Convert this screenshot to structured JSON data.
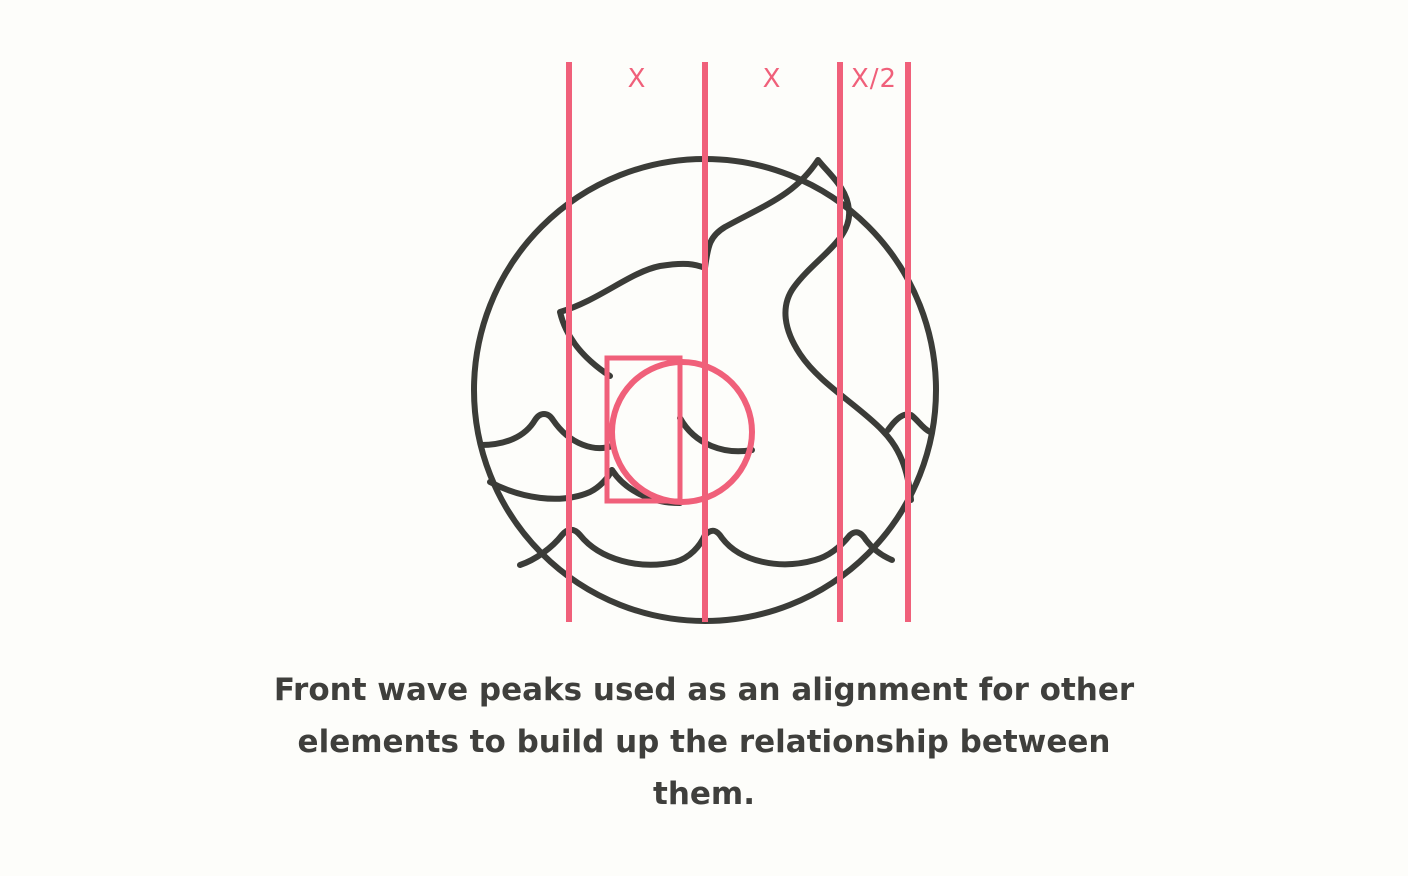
{
  "diagram": {
    "guide_labels": [
      "X",
      "X",
      "X/2"
    ],
    "caption": "Front wave peaks used as an alignment for other elements to build up the relationship between them.",
    "colors": {
      "background": "#fdfdfa",
      "icon_stroke": "#3b3c38",
      "guide": "#f0607a",
      "text": "#3f3f3c"
    }
  }
}
